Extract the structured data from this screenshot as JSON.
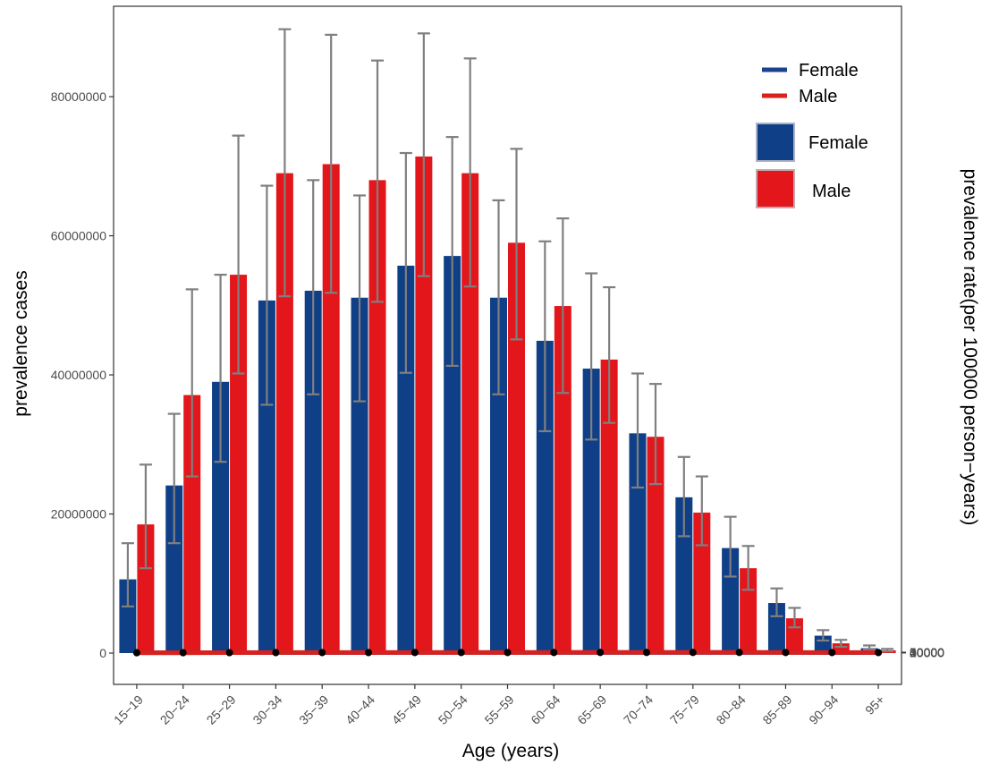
{
  "chart_data": {
    "type": "bar",
    "xlabel": "Age (years)",
    "ylabel": "prevalence cases",
    "y2label": "prevalence rate(per 100000 person−years)",
    "categories": [
      "15−19",
      "20−24",
      "25−29",
      "30−34",
      "35−39",
      "40−44",
      "45−49",
      "50−54",
      "55−59",
      "60−64",
      "65−69",
      "70−74",
      "75−79",
      "80−84",
      "85−89",
      "90−94",
      "95+"
    ],
    "ylim": [
      -4500000,
      93000000
    ],
    "y2lim": [
      -2900000,
      59400000
    ],
    "ylim_note": "placeholder",
    "yticks": [
      {
        "value": 0,
        "label": "0"
      },
      {
        "value": 20000000,
        "label": "20000000"
      },
      {
        "value": 40000000,
        "label": "40000000"
      },
      {
        "value": 60000000,
        "label": "60000000"
      },
      {
        "value": 80000000,
        "label": "80000000"
      }
    ],
    "y2ticks": [
      {
        "value": 0,
        "label": "0"
      },
      {
        "value": 10000,
        "label": "10000"
      },
      {
        "value": 20000,
        "label": "20000"
      },
      {
        "value": 30000,
        "label": "30000"
      },
      {
        "value": 40000,
        "label": "40000"
      },
      {
        "value": 50000,
        "label": "50000"
      }
    ],
    "bar_series": [
      {
        "name": "Female",
        "color": "#0f3f87",
        "values": [
          10600000,
          24100000,
          39000000,
          50700000,
          52100000,
          51100000,
          55700000,
          57100000,
          51100000,
          44900000,
          40900000,
          31600000,
          22400000,
          15100000,
          7200000,
          2500000,
          700000
        ],
        "lower": [
          6700000,
          15800000,
          27500000,
          35700000,
          37200000,
          36200000,
          40300000,
          41300000,
          37200000,
          31900000,
          30700000,
          23800000,
          16800000,
          11000000,
          5300000,
          1800000,
          500000
        ],
        "upper": [
          15800000,
          34400000,
          54400000,
          67200000,
          68000000,
          65800000,
          71900000,
          74200000,
          65100000,
          59200000,
          54600000,
          40200000,
          28200000,
          19600000,
          9300000,
          3300000,
          1100000
        ]
      },
      {
        "name": "Male",
        "color": "#e3161b",
        "values": [
          18500000,
          37100000,
          54400000,
          69000000,
          70300000,
          68000000,
          71400000,
          69000000,
          59000000,
          49900000,
          42200000,
          31100000,
          20200000,
          12200000,
          5000000,
          1400000,
          400000
        ],
        "lower": [
          12200000,
          25400000,
          40200000,
          51300000,
          51800000,
          50500000,
          54200000,
          52700000,
          45100000,
          37400000,
          33100000,
          24300000,
          15500000,
          9100000,
          3700000,
          900000,
          250000
        ],
        "upper": [
          27100000,
          52300000,
          74400000,
          89700000,
          88900000,
          85200000,
          89100000,
          85500000,
          72500000,
          62500000,
          52600000,
          38700000,
          25400000,
          15400000,
          6500000,
          1900000,
          600000
        ]
      }
    ],
    "line_series": [
      {
        "name": "Female",
        "color": "#1b428f",
        "band_color": "#2b5ea3",
        "values": [
          3500,
          8100,
          13100,
          17100,
          19500,
          20900,
          23600,
          26200,
          27200,
          28100,
          30400,
          32000,
          32100,
          30600,
          26100,
          22500,
          21200
        ],
        "lower": [
          2200,
          5600,
          9600,
          12300,
          14100,
          15400,
          17200,
          19600,
          20600,
          20000,
          21800,
          24000,
          24000,
          22500,
          19100,
          16200,
          14500
        ],
        "upper": [
          5200,
          11000,
          17400,
          22500,
          26000,
          27800,
          31300,
          34400,
          36100,
          36600,
          40400,
          40800,
          40800,
          39500,
          33600,
          30400,
          31100
        ]
      },
      {
        "name": "Male",
        "color": "#d9201d",
        "band_color": "#e05054",
        "values": [
          5900,
          12200,
          17800,
          22900,
          25800,
          27400,
          30000,
          31700,
          32300,
          32800,
          34100,
          35300,
          35500,
          34700,
          31300,
          27600,
          26400
        ],
        "lower": [
          3600,
          8300,
          12800,
          16500,
          18700,
          20000,
          22200,
          23700,
          24400,
          24700,
          25600,
          27100,
          27200,
          26900,
          23800,
          20900,
          18600
        ],
        "upper": [
          8900,
          17600,
          25200,
          31400,
          34200,
          35700,
          38600,
          40300,
          40800,
          41800,
          42900,
          44600,
          45200,
          44400,
          39600,
          35500,
          36000
        ]
      }
    ],
    "legend": {
      "position": "top-right",
      "line_entries": [
        {
          "label": "Female",
          "color": "#1b428f"
        },
        {
          "label": "Male",
          "color": "#d9201d"
        }
      ],
      "bar_entries": [
        {
          "label": "Female",
          "color": "#0f3f87"
        },
        {
          "label": "Male",
          "color": "#e3161b"
        }
      ]
    },
    "colors": {
      "error_bar": "#7f7f7f",
      "point": "#000000",
      "axis": "#333333"
    },
    "grid": false
  }
}
